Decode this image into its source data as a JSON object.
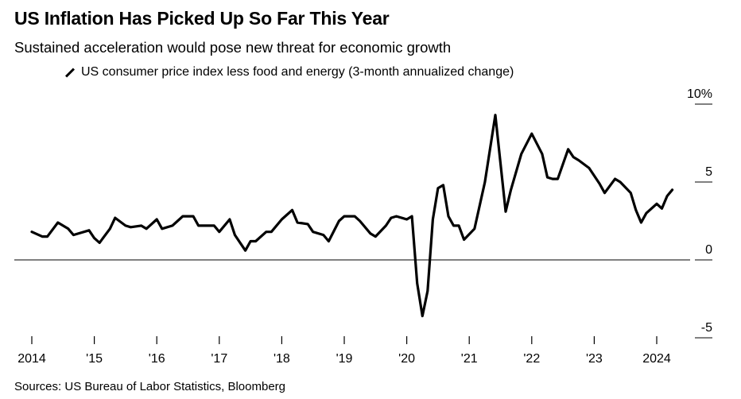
{
  "header": {
    "title": "US Inflation Has Picked Up So Far This Year",
    "subtitle": "Sustained acceleration would pose new threat for economic growth",
    "legend_label": "US consumer price index less food and energy (3-month annualized change)"
  },
  "footer": {
    "source": "Sources: US Bureau of Labor Statistics, Bloomberg"
  },
  "chart_data": {
    "type": "line",
    "title": "US Inflation Has Picked Up So Far This Year",
    "subtitle": "Sustained acceleration would pose new threat for economic growth",
    "xlabel": "",
    "ylabel": "",
    "ylim": [
      -5,
      10
    ],
    "xlim": [
      "2014-01",
      "2024-05"
    ],
    "y_ticks": [
      {
        "value": 10,
        "label": "10%"
      },
      {
        "value": 5,
        "label": "5"
      },
      {
        "value": 0,
        "label": "0"
      },
      {
        "value": -5,
        "label": "-5"
      }
    ],
    "x_ticks": [
      {
        "year": 2014,
        "label": "2014"
      },
      {
        "year": 2015,
        "label": "'15"
      },
      {
        "year": 2016,
        "label": "'16"
      },
      {
        "year": 2017,
        "label": "'17"
      },
      {
        "year": 2018,
        "label": "'18"
      },
      {
        "year": 2019,
        "label": "'19"
      },
      {
        "year": 2020,
        "label": "'20"
      },
      {
        "year": 2021,
        "label": "'21"
      },
      {
        "year": 2022,
        "label": "'22"
      },
      {
        "year": 2023,
        "label": "'23"
      },
      {
        "year": 2024,
        "label": "2024"
      }
    ],
    "grid": false,
    "zero_line": true,
    "line_color": "#000000",
    "series": [
      {
        "name": "US consumer price index less food and energy (3-month annualized change)",
        "x": [
          "2014-01",
          "2014-03",
          "2014-04",
          "2014-06",
          "2014-08",
          "2014-09",
          "2014-12",
          "2015-01",
          "2015-02",
          "2015-04",
          "2015-05",
          "2015-07",
          "2015-08",
          "2015-10",
          "2015-11",
          "2016-01",
          "2016-02",
          "2016-04",
          "2016-05",
          "2016-06",
          "2016-08",
          "2016-09",
          "2016-11",
          "2016-12",
          "2017-01",
          "2017-03",
          "2017-04",
          "2017-06",
          "2017-07",
          "2017-08",
          "2017-10",
          "2017-11",
          "2018-01",
          "2018-03",
          "2018-04",
          "2018-06",
          "2018-07",
          "2018-09",
          "2018-10",
          "2018-12",
          "2019-01",
          "2019-03",
          "2019-04",
          "2019-06",
          "2019-07",
          "2019-09",
          "2019-10",
          "2019-11",
          "2020-01",
          "2020-02",
          "2020-03",
          "2020-04",
          "2020-05",
          "2020-06",
          "2020-07",
          "2020-08",
          "2020-09",
          "2020-10",
          "2020-11",
          "2020-12",
          "2021-02",
          "2021-04",
          "2021-06",
          "2021-08",
          "2021-09",
          "2021-11",
          "2022-01",
          "2022-03",
          "2022-04",
          "2022-05",
          "2022-06",
          "2022-08",
          "2022-09",
          "2022-10",
          "2022-12",
          "2023-02",
          "2023-03",
          "2023-05",
          "2023-06",
          "2023-08",
          "2023-09",
          "2023-10",
          "2023-11",
          "2024-01",
          "2024-02",
          "2024-03",
          "2024-04"
        ],
        "values": [
          1.8,
          1.5,
          1.5,
          2.4,
          2.0,
          1.6,
          1.9,
          1.4,
          1.1,
          2.0,
          2.7,
          2.2,
          2.1,
          2.2,
          2.0,
          2.6,
          2.0,
          2.2,
          2.5,
          2.8,
          2.8,
          2.2,
          2.2,
          2.2,
          1.8,
          2.6,
          1.6,
          0.6,
          1.2,
          1.2,
          1.8,
          1.8,
          2.6,
          3.2,
          2.4,
          2.3,
          1.8,
          1.6,
          1.2,
          2.5,
          2.8,
          2.8,
          2.5,
          1.7,
          1.5,
          2.2,
          2.7,
          2.8,
          2.6,
          2.8,
          -1.5,
          -3.6,
          -2.0,
          2.6,
          4.6,
          4.8,
          2.8,
          2.2,
          2.2,
          1.3,
          2.0,
          5.0,
          9.3,
          3.1,
          4.5,
          6.8,
          8.1,
          6.8,
          5.3,
          5.2,
          5.2,
          7.1,
          6.6,
          6.4,
          5.9,
          4.9,
          4.3,
          5.2,
          5.0,
          4.3,
          3.2,
          2.4,
          3.0,
          3.6,
          3.3,
          4.1,
          4.5
        ]
      }
    ]
  }
}
